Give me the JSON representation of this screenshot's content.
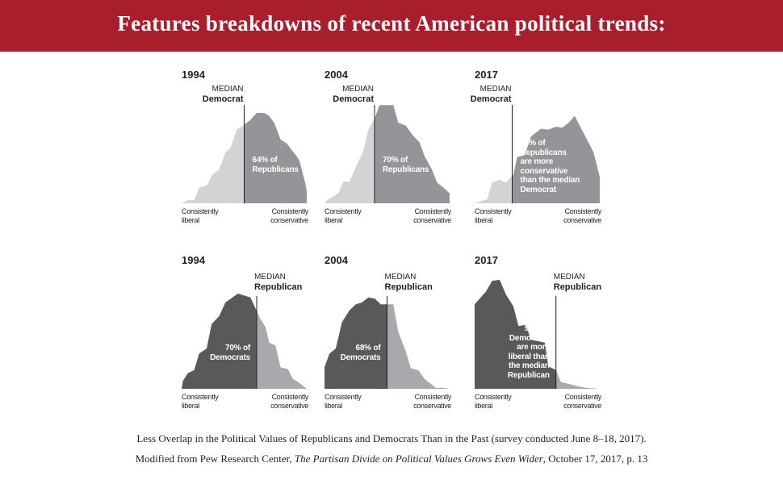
{
  "header": {
    "title": "Features breakdowns of recent American political trends:"
  },
  "panels": [
    {
      "year": "1994",
      "median_top": "MEDIAN",
      "median_party": "Democrat",
      "annotation": "64% of\nRepublicans",
      "left_label": "Consistently\nliberal",
      "right_label": "Consistently\nconservative"
    },
    {
      "year": "2004",
      "median_top": "MEDIAN",
      "median_party": "Democrat",
      "annotation": "70% of\nRepublicans",
      "left_label": "Consistently\nliberal",
      "right_label": "Consistently\nconservative"
    },
    {
      "year": "2017",
      "median_top": "MEDIAN",
      "median_party": "Democrat",
      "annotation": "95% of\nRepublicans\nare more\nconservative\nthan the median\nDemocrat",
      "left_label": "Consistently\nliberal",
      "right_label": "Consistently\nconservative"
    },
    {
      "year": "1994",
      "median_top": "MEDIAN",
      "median_party": "Republican",
      "annotation": "70% of\nDemocrats",
      "left_label": "Consistently\nliberal",
      "right_label": "Consistently\nconservative"
    },
    {
      "year": "2004",
      "median_top": "MEDIAN",
      "median_party": "Republican",
      "annotation": "68% of\nDemocrats",
      "left_label": "Consistently\nliberal",
      "right_label": "Consistently\nconservative"
    },
    {
      "year": "2017",
      "median_top": "MEDIAN",
      "median_party": "Republican",
      "annotation": "97% of\nDemocrats\nare more\nliberal than\nthe median\nRepublican",
      "left_label": "Consistently\nliberal",
      "right_label": "Consistently\nconservative"
    }
  ],
  "footer": {
    "line1": "Less Overlap in the Political Values of Republicans and Democrats Than in the Past (survey conducted  June 8–18, 2017).",
    "line2_prefix": "Modified from Pew Research Center, ",
    "line2_title": "The Partisan Divide on Political Values Grows Even Wider",
    "line2_suffix": ", October 17, 2017, p. 13"
  },
  "colors": {
    "header": "#a91e2c",
    "rep_left": "#d1d3d4",
    "rep_right": "#939598",
    "dem_left": "#58595b",
    "dem_right": "#a7a9ac",
    "median_line": "#231f20"
  },
  "chart_data": [
    {
      "type": "area",
      "year": "1994",
      "highlight": "Republicans",
      "median_of": "Democrat",
      "median_x": 50,
      "ylim": [
        0,
        115
      ],
      "points": [
        [
          0,
          0
        ],
        [
          5,
          3
        ],
        [
          10,
          3
        ],
        [
          14,
          16
        ],
        [
          20,
          18
        ],
        [
          25,
          30
        ],
        [
          30,
          34
        ],
        [
          35,
          52
        ],
        [
          39,
          56
        ],
        [
          44,
          75
        ],
        [
          49,
          79
        ],
        [
          55,
          85
        ],
        [
          60,
          92
        ],
        [
          66,
          92
        ],
        [
          70,
          89
        ],
        [
          74,
          82
        ],
        [
          79,
          65
        ],
        [
          84,
          61
        ],
        [
          90,
          51
        ],
        [
          94,
          44
        ],
        [
          99,
          20
        ],
        [
          100,
          12
        ],
        [
          100,
          0
        ]
      ]
    },
    {
      "type": "area",
      "year": "2004",
      "highlight": "Republicans",
      "median_of": "Democrat",
      "median_x": 40,
      "ylim": [
        0,
        115
      ],
      "points": [
        [
          0,
          0
        ],
        [
          4,
          5
        ],
        [
          11,
          10
        ],
        [
          15,
          22
        ],
        [
          20,
          22
        ],
        [
          25,
          37
        ],
        [
          31,
          53
        ],
        [
          35,
          75
        ],
        [
          40,
          86
        ],
        [
          44,
          100
        ],
        [
          55,
          100
        ],
        [
          59,
          82
        ],
        [
          65,
          79
        ],
        [
          70,
          70
        ],
        [
          76,
          62
        ],
        [
          80,
          48
        ],
        [
          86,
          34
        ],
        [
          90,
          21
        ],
        [
          95,
          16
        ],
        [
          100,
          10
        ],
        [
          100,
          0
        ]
      ]
    },
    {
      "type": "area",
      "year": "2017",
      "highlight": "Republicans",
      "median_of": "Democrat",
      "median_x": 30,
      "ylim": [
        0,
        115
      ],
      "points": [
        [
          0,
          0
        ],
        [
          10,
          4
        ],
        [
          14,
          21
        ],
        [
          20,
          24
        ],
        [
          25,
          21
        ],
        [
          31,
          29
        ],
        [
          34,
          47
        ],
        [
          40,
          49
        ],
        [
          45,
          68
        ],
        [
          53,
          76
        ],
        [
          59,
          75
        ],
        [
          65,
          78
        ],
        [
          70,
          77
        ],
        [
          75,
          82
        ],
        [
          80,
          89
        ],
        [
          84,
          79
        ],
        [
          89,
          67
        ],
        [
          95,
          52
        ],
        [
          100,
          27
        ],
        [
          100,
          0
        ]
      ]
    },
    {
      "type": "area",
      "year": "1994",
      "highlight": "Democrats",
      "median_of": "Republican",
      "median_x": 60,
      "ylim": [
        0,
        115
      ],
      "points": [
        [
          0,
          0
        ],
        [
          1,
          8
        ],
        [
          5,
          16
        ],
        [
          10,
          19
        ],
        [
          14,
          36
        ],
        [
          20,
          41
        ],
        [
          24,
          66
        ],
        [
          30,
          74
        ],
        [
          35,
          88
        ],
        [
          45,
          97
        ],
        [
          55,
          93
        ],
        [
          59,
          82
        ],
        [
          63,
          71
        ],
        [
          67,
          63
        ],
        [
          70,
          47
        ],
        [
          75,
          44
        ],
        [
          79,
          22
        ],
        [
          85,
          20
        ],
        [
          89,
          10
        ],
        [
          93,
          7
        ],
        [
          100,
          0
        ]
      ]
    },
    {
      "type": "area",
      "year": "2004",
      "highlight": "Democrats",
      "median_of": "Republican",
      "median_x": 50,
      "ylim": [
        0,
        115
      ],
      "points": [
        [
          0,
          0
        ],
        [
          0,
          22
        ],
        [
          4,
          36
        ],
        [
          9,
          41
        ],
        [
          14,
          68
        ],
        [
          20,
          80
        ],
        [
          25,
          86
        ],
        [
          30,
          88
        ],
        [
          35,
          93
        ],
        [
          40,
          92
        ],
        [
          45,
          86
        ],
        [
          55,
          86
        ],
        [
          59,
          58
        ],
        [
          65,
          38
        ],
        [
          69,
          21
        ],
        [
          75,
          19
        ],
        [
          80,
          10
        ],
        [
          89,
          1
        ],
        [
          95,
          1
        ],
        [
          100,
          0
        ]
      ]
    },
    {
      "type": "area",
      "year": "2017",
      "highlight": "Democrats",
      "median_of": "Republican",
      "median_x": 65,
      "ylim": [
        0,
        115
      ],
      "points": [
        [
          0,
          0
        ],
        [
          0,
          86
        ],
        [
          9,
          99
        ],
        [
          14,
          110
        ],
        [
          20,
          111
        ],
        [
          25,
          96
        ],
        [
          31,
          84
        ],
        [
          35,
          64
        ],
        [
          41,
          65
        ],
        [
          45,
          50
        ],
        [
          56,
          47
        ],
        [
          59,
          23
        ],
        [
          65,
          19
        ],
        [
          69,
          7
        ],
        [
          75,
          5
        ],
        [
          81,
          3
        ],
        [
          89,
          1
        ],
        [
          100,
          0
        ]
      ]
    }
  ]
}
